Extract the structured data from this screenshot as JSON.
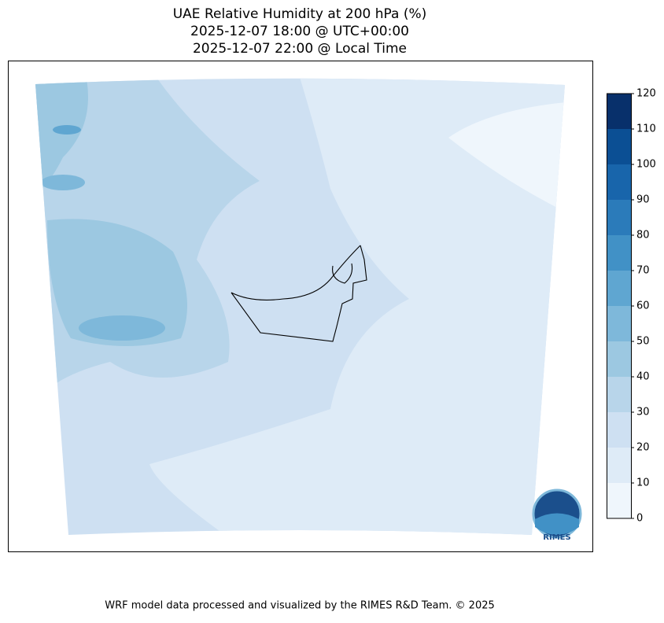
{
  "title": [
    "UAE Relative Humidity at 200 hPa (%)",
    "2025-12-07 18:00 @ UTC+00:00",
    "2025-12-07 22:00 @ Local Time"
  ],
  "colorbar": {
    "lim": [
      0,
      120
    ],
    "ticks": [
      0,
      10,
      20,
      30,
      40,
      50,
      60,
      70,
      80,
      90,
      100,
      110,
      120
    ],
    "colors": [
      "#eff6fc",
      "#deebf7",
      "#cee0f2",
      "#b8d5ea",
      "#9cc8e1",
      "#7eb8da",
      "#5fa6d1",
      "#4191c6",
      "#2b7bba",
      "#1865ab",
      "#0b4f94",
      "#08306b"
    ]
  },
  "logo": "RIMES",
  "footer": "WRF model data processed and visualized by the RIMES R&D Team. © 2025"
}
